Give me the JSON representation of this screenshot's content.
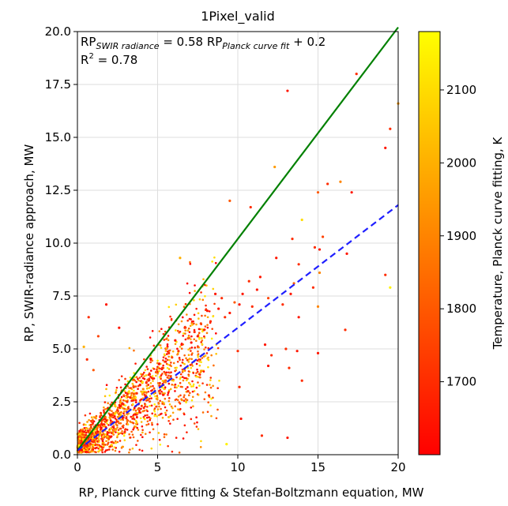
{
  "chart_data": {
    "type": "scatter",
    "title": "1Pixel_valid",
    "xlabel": "RP, Planck curve fitting & Stefan-Boltzmann equation, MW",
    "ylabel": "RP, SWIR-radiance approach, MW",
    "xlim": [
      0,
      20
    ],
    "ylim": [
      0,
      20
    ],
    "xticks": [
      "0",
      "5",
      "10",
      "15",
      "20"
    ],
    "yticks": [
      "0.0",
      "2.5",
      "5.0",
      "7.5",
      "10.0",
      "12.5",
      "15.0",
      "17.5",
      "20.0"
    ],
    "grid": true,
    "annotation": {
      "rp": "RP",
      "swir_subscript": "SWIR radiance",
      "equals": " = 0.58 ",
      "planck_subscript": "Planck curve fit",
      "plus": " + 0.2",
      "r2_prefix": "R",
      "r2_sup": "2",
      "r2_value": " = 0.78"
    },
    "lines": [
      {
        "style": "solid",
        "color": "#008000",
        "x": [
          0,
          20
        ],
        "y": [
          0.2,
          20.2
        ]
      },
      {
        "style": "dashed",
        "color": "#1f1fff",
        "x": [
          0,
          20
        ],
        "y": [
          0.2,
          11.8
        ]
      }
    ],
    "colorbar": {
      "label": "Temperature, Planck curve fitting, K",
      "min": 1600,
      "max": 2180,
      "ticks": [
        "1700",
        "1800",
        "1900",
        "2000",
        "2100"
      ],
      "tick_values": [
        1700,
        1800,
        1900,
        2000,
        2100
      ],
      "colormap": "autumn"
    },
    "points": [
      [
        17.4,
        18.0,
        1700
      ],
      [
        13.1,
        17.2,
        1650
      ],
      [
        20.0,
        16.6,
        1950
      ],
      [
        19.5,
        15.4,
        1700
      ],
      [
        19.2,
        14.5,
        1650
      ],
      [
        12.3,
        13.6,
        1950
      ],
      [
        15.0,
        12.4,
        1800
      ],
      [
        15.6,
        12.8,
        1700
      ],
      [
        16.4,
        12.9,
        1900
      ],
      [
        17.1,
        12.4,
        1650
      ],
      [
        10.8,
        11.7,
        1700
      ],
      [
        14.0,
        11.1,
        2100
      ],
      [
        9.5,
        12.0,
        1800
      ],
      [
        14.8,
        9.8,
        1700
      ],
      [
        15.1,
        9.7,
        1650
      ],
      [
        15.3,
        10.3,
        1750
      ],
      [
        13.4,
        10.2,
        1700
      ],
      [
        12.4,
        9.3,
        1650
      ],
      [
        13.8,
        9.0,
        1700
      ],
      [
        16.8,
        9.5,
        1650
      ],
      [
        19.2,
        8.5,
        1700
      ],
      [
        19.5,
        7.9,
        2150
      ],
      [
        13.5,
        8.1,
        1800
      ],
      [
        15.1,
        8.6,
        1900
      ],
      [
        14.7,
        7.9,
        1700
      ],
      [
        13.3,
        7.6,
        1650
      ],
      [
        12.8,
        7.1,
        1700
      ],
      [
        11.9,
        7.4,
        1750
      ],
      [
        11.2,
        7.8,
        1650
      ],
      [
        11.4,
        8.4,
        1650
      ],
      [
        10.7,
        8.2,
        1700
      ],
      [
        10.3,
        7.6,
        1650
      ],
      [
        10.9,
        7.0,
        1700
      ],
      [
        10.1,
        7.1,
        1650
      ],
      [
        9.8,
        7.2,
        1800
      ],
      [
        9.5,
        6.7,
        1650
      ],
      [
        9.2,
        6.5,
        1700
      ],
      [
        8.8,
        6.9,
        1650
      ],
      [
        9.0,
        7.4,
        1700
      ],
      [
        8.6,
        7.6,
        1650
      ],
      [
        8.3,
        6.3,
        1700
      ],
      [
        8.1,
        6.8,
        1650
      ],
      [
        7.9,
        5.9,
        1700
      ],
      [
        7.7,
        6.2,
        1750
      ],
      [
        7.5,
        5.6,
        1650
      ],
      [
        7.3,
        5.8,
        1700
      ],
      [
        7.1,
        5.3,
        1650
      ],
      [
        6.9,
        5.5,
        1800
      ],
      [
        6.7,
        6.0,
        1700
      ],
      [
        6.4,
        9.3,
        2000
      ],
      [
        6.5,
        5.2,
        1650
      ],
      [
        6.3,
        4.9,
        1700
      ],
      [
        6.1,
        5.4,
        1650
      ],
      [
        5.9,
        4.6,
        1750
      ],
      [
        5.7,
        4.8,
        1700
      ],
      [
        5.5,
        4.4,
        1650
      ],
      [
        5.3,
        4.1,
        1700
      ],
      [
        5.1,
        4.3,
        1650
      ],
      [
        4.9,
        3.9,
        1800
      ],
      [
        4.7,
        3.6,
        1700
      ],
      [
        4.5,
        3.8,
        1650
      ],
      [
        4.3,
        3.4,
        1700
      ],
      [
        4.1,
        3.1,
        1900
      ],
      [
        3.9,
        3.3,
        1650
      ],
      [
        3.7,
        2.9,
        1700
      ],
      [
        3.5,
        3.2,
        1750
      ],
      [
        3.3,
        2.7,
        1650
      ],
      [
        3.1,
        2.5,
        1700
      ],
      [
        2.9,
        2.8,
        1800
      ],
      [
        2.7,
        2.3,
        1650
      ],
      [
        2.5,
        2.1,
        1700
      ],
      [
        2.3,
        2.4,
        1950
      ],
      [
        2.1,
        1.9,
        1700
      ],
      [
        1.9,
        2.2,
        1650
      ],
      [
        1.7,
        1.8,
        1800
      ],
      [
        1.5,
        1.6,
        1700
      ],
      [
        1.3,
        1.4,
        1650
      ],
      [
        1.1,
        1.2,
        2000
      ],
      [
        0.9,
        1.0,
        1700
      ],
      [
        0.7,
        0.8,
        1650
      ],
      [
        0.5,
        0.6,
        1750
      ],
      [
        0.3,
        0.4,
        1700
      ],
      [
        10.0,
        4.9,
        1700
      ],
      [
        11.7,
        5.2,
        1650
      ],
      [
        12.1,
        4.7,
        1700
      ],
      [
        11.9,
        4.2,
        1650
      ],
      [
        13.0,
        5.0,
        1700
      ],
      [
        13.7,
        4.9,
        1650
      ],
      [
        13.2,
        4.1,
        1700
      ],
      [
        15.0,
        4.8,
        1650
      ],
      [
        14.0,
        3.5,
        1700
      ],
      [
        13.8,
        6.5,
        1650
      ],
      [
        15.0,
        7.0,
        1900
      ],
      [
        16.7,
        5.9,
        1700
      ],
      [
        10.1,
        3.2,
        1700
      ],
      [
        10.2,
        1.7,
        1650
      ],
      [
        11.5,
        0.9,
        1700
      ],
      [
        13.1,
        0.8,
        1650
      ],
      [
        8.2,
        2.8,
        1700
      ],
      [
        9.3,
        0.5,
        2150
      ],
      [
        6.9,
        3.0,
        1700
      ],
      [
        1.8,
        7.1,
        1650
      ],
      [
        0.7,
        6.5,
        1700
      ],
      [
        1.3,
        5.6,
        1750
      ],
      [
        0.4,
        5.1,
        2000
      ],
      [
        2.6,
        6.0,
        1650
      ],
      [
        0.6,
        4.5,
        1700
      ],
      [
        1.0,
        4.0,
        1800
      ]
    ],
    "cloud_seed": 7
  }
}
